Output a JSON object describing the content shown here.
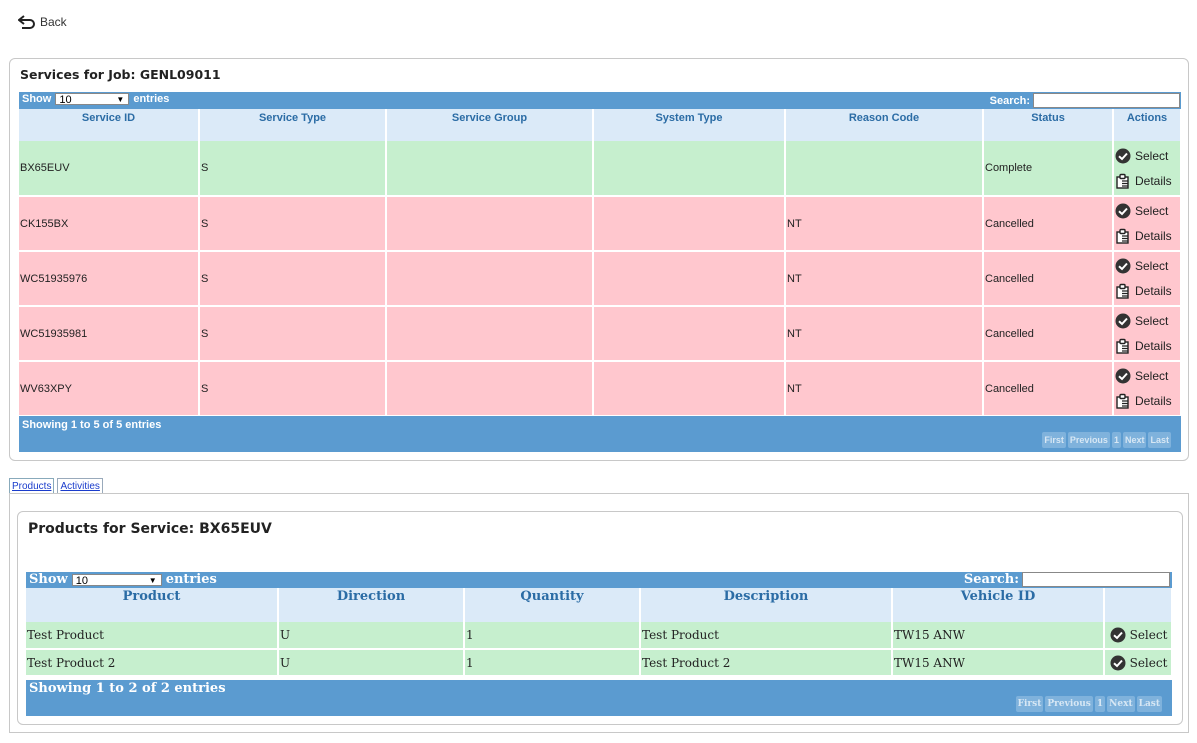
{
  "back": {
    "label": "Back",
    "icon": "back-arrow-icon"
  },
  "services": {
    "title": "Services for Job: GENL09011",
    "show_label": "Show",
    "entries_value": "10",
    "entries_label": "entries",
    "search_label": "Search:",
    "columns": [
      "Service ID",
      "Service Type",
      "Service Group",
      "System Type",
      "Reason Code",
      "Status",
      "Actions"
    ],
    "rows": [
      {
        "id": "BX65EUV",
        "type": "S",
        "group": "",
        "system": "",
        "reason": "",
        "status": "Complete",
        "select": "Select",
        "details": "Details"
      },
      {
        "id": "CK155BX",
        "type": "S",
        "group": "",
        "system": "",
        "reason": "NT",
        "status": "Cancelled",
        "select": "Select",
        "details": "Details"
      },
      {
        "id": "WC51935976",
        "type": "S",
        "group": "",
        "system": "",
        "reason": "NT",
        "status": "Cancelled",
        "select": "Select",
        "details": "Details"
      },
      {
        "id": "WC51935981",
        "type": "S",
        "group": "",
        "system": "",
        "reason": "NT",
        "status": "Cancelled",
        "select": "Select",
        "details": "Details"
      },
      {
        "id": "WV63XPY",
        "type": "S",
        "group": "",
        "system": "",
        "reason": "NT",
        "status": "Cancelled",
        "select": "Select",
        "details": "Details"
      }
    ],
    "info": "Showing 1 to 5 of 5 entries",
    "pager": [
      "First",
      "Previous",
      "1",
      "Next",
      "Last"
    ]
  },
  "tabs": [
    "Products",
    "Activities"
  ],
  "products": {
    "title": "Products for Service: BX65EUV",
    "show_label": "Show",
    "entries_value": "10",
    "entries_label": "entries",
    "search_label": "Search:",
    "columns": [
      "Product",
      "Direction",
      "Quantity",
      "Description",
      "Vehicle ID",
      ""
    ],
    "rows": [
      {
        "product": "Test Product",
        "direction": "U",
        "quantity": "1",
        "description": "Test Product",
        "vehicle": "TW15 ANW",
        "select": "Select"
      },
      {
        "product": "Test Product 2",
        "direction": "U",
        "quantity": "1",
        "description": "Test Product 2",
        "vehicle": "TW15 ANW",
        "select": "Select"
      }
    ],
    "info": "Showing 1 to 2 of 2 entries",
    "pager": [
      "First",
      "Previous",
      "1",
      "Next",
      "Last"
    ]
  },
  "colors": {
    "header_bar": "#5b9bd0",
    "complete_row": "#c6efce",
    "cancelled_row": "#ffc7ce",
    "column_header": "#dbeaf8"
  }
}
